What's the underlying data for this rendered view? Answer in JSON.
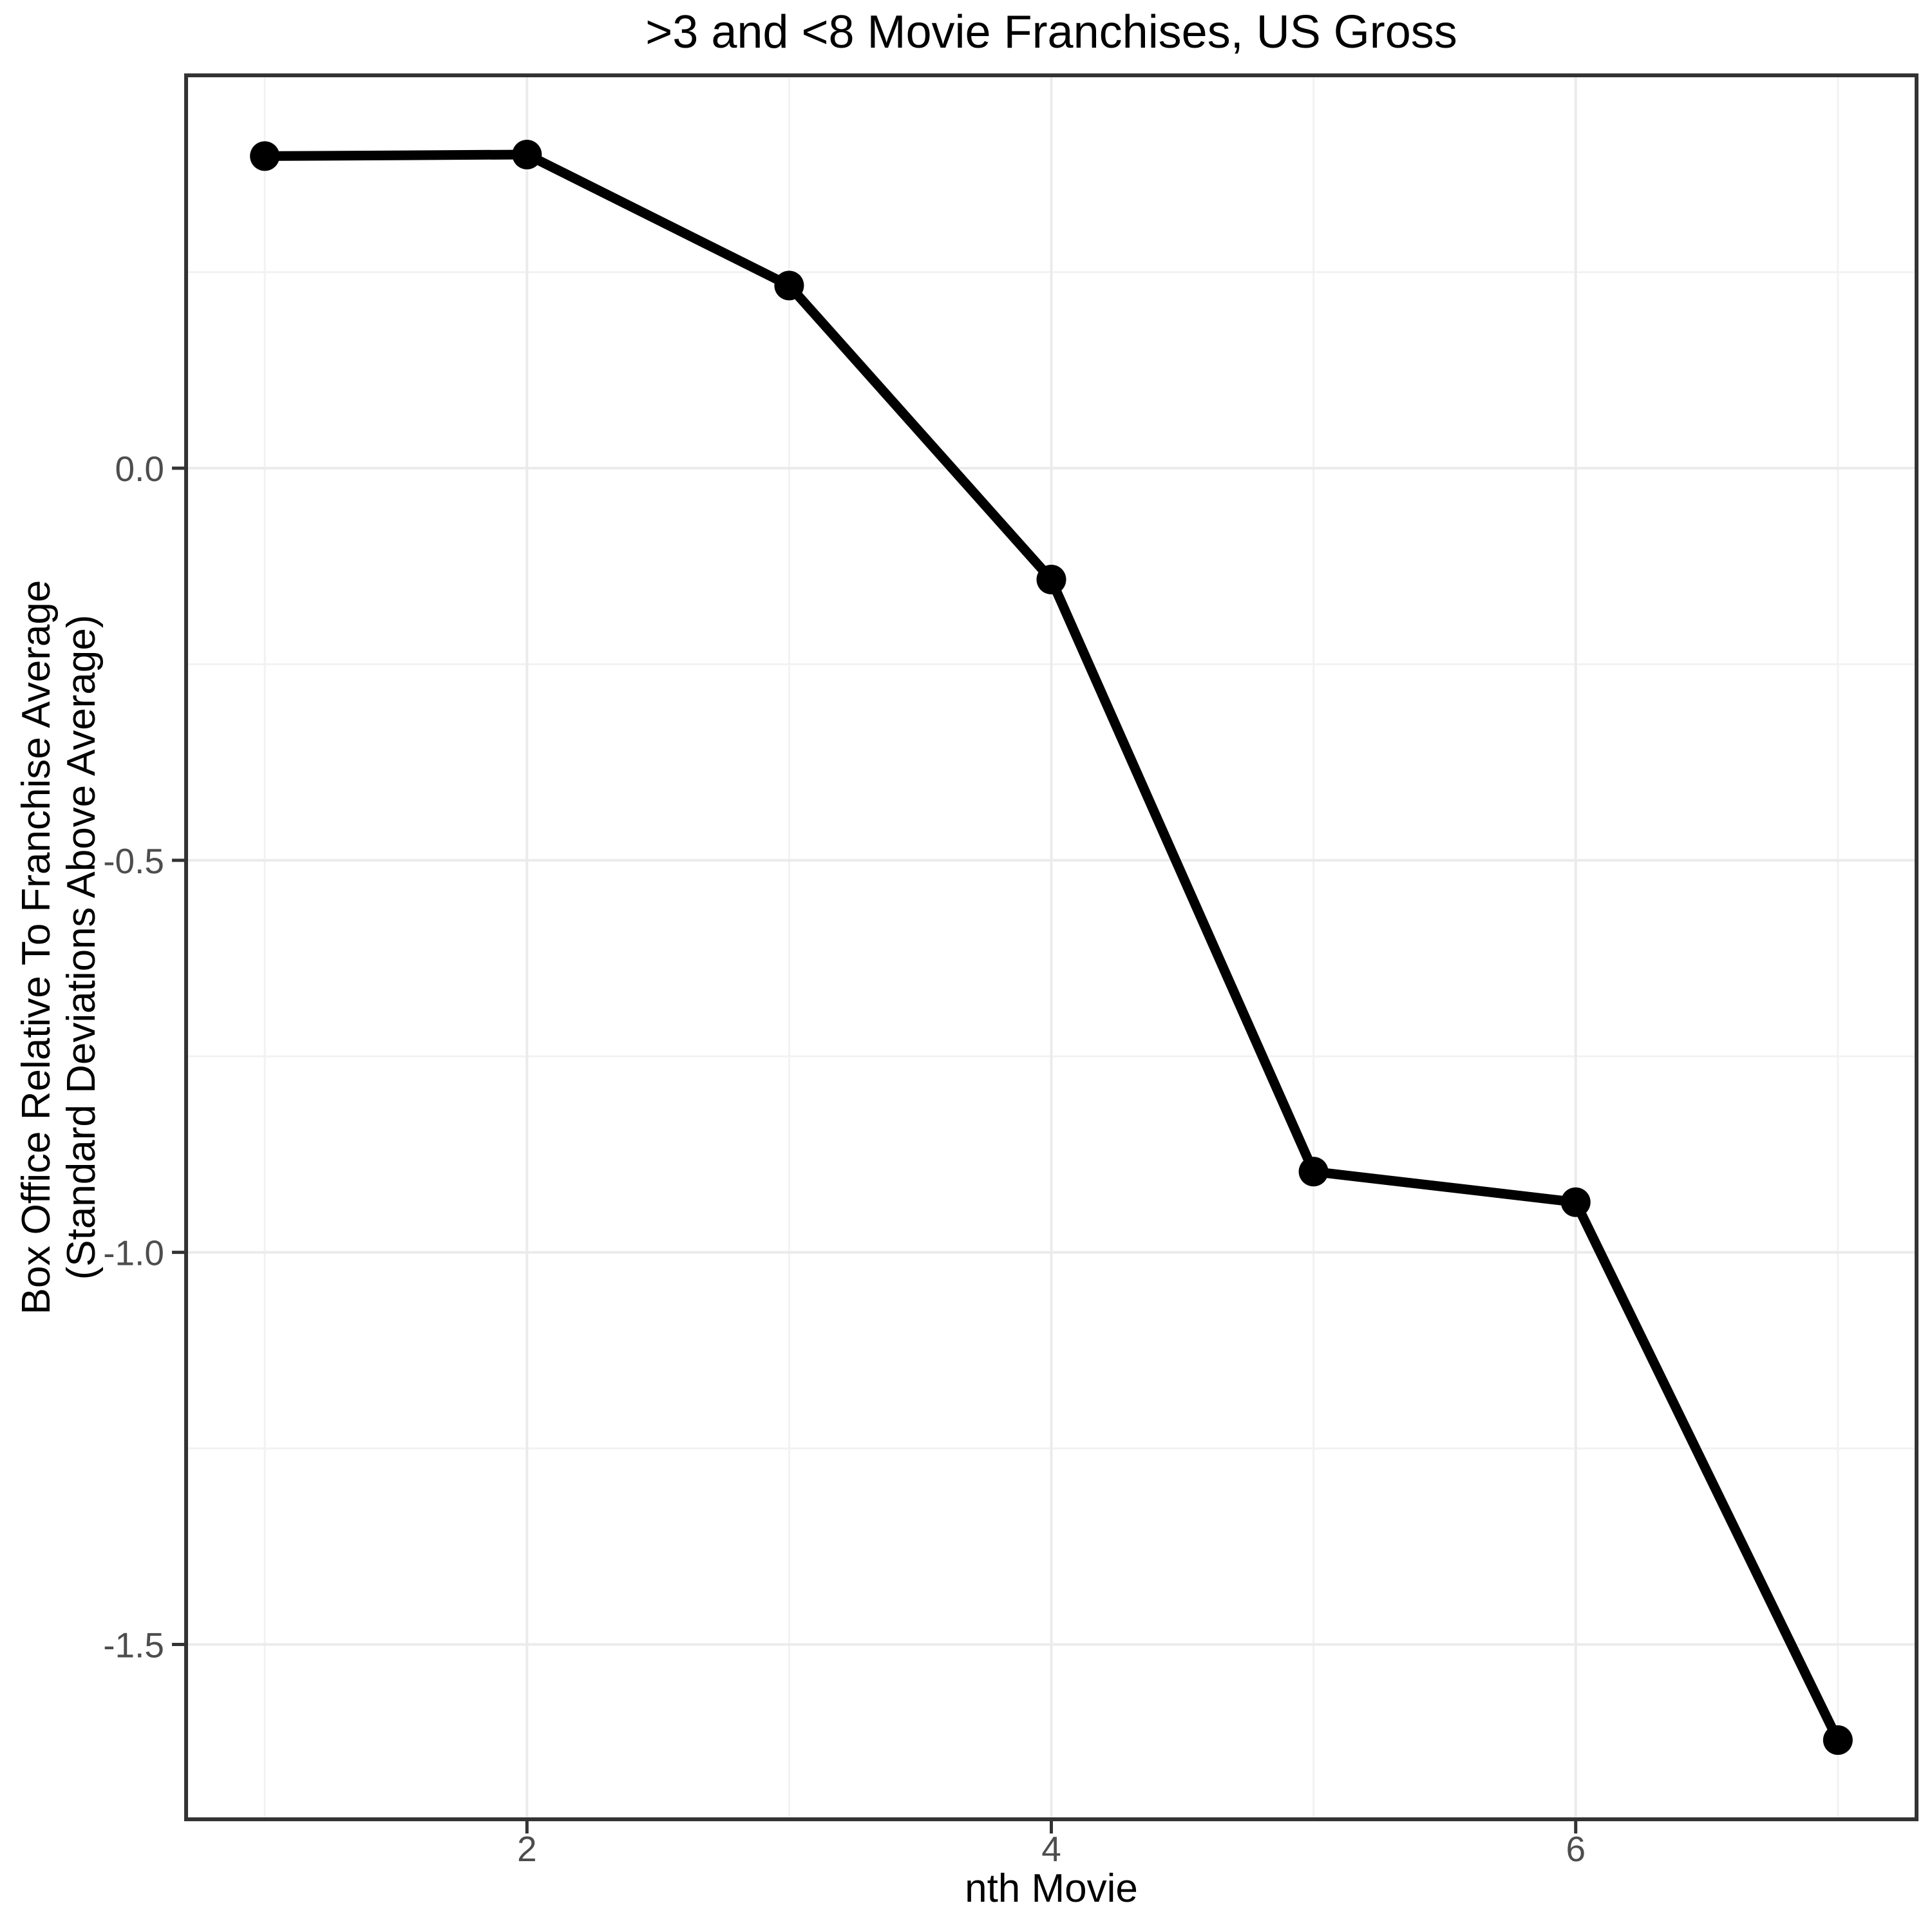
{
  "chart_data": {
    "type": "line",
    "title": ">3 and <8 Movie Franchises, US Gross",
    "xlabel": "nth Movie",
    "ylabel_line1": "Box Office Relative To Franchise Average",
    "ylabel_line2": "(Standard Deviations Above Average)",
    "x": [
      1,
      2,
      3,
      4,
      5,
      6,
      7
    ],
    "values": [
      0.398,
      0.4,
      0.233,
      -0.142,
      -0.897,
      -0.936,
      -1.622
    ],
    "xlim": [
      0.7,
      7.3
    ],
    "ylim": [
      -1.723,
      0.501
    ],
    "x_ticks": [
      {
        "v": 2,
        "label": "2"
      },
      {
        "v": 4,
        "label": "4"
      },
      {
        "v": 6,
        "label": "6"
      }
    ],
    "y_ticks": [
      {
        "v": 0.0,
        "label": "0.0"
      },
      {
        "v": -0.5,
        "label": "-0.5"
      },
      {
        "v": -1.0,
        "label": "-1.0"
      },
      {
        "v": -1.5,
        "label": "-1.5"
      }
    ],
    "x_minor": [
      1,
      3,
      5,
      7
    ],
    "y_minor": [
      0.25,
      -0.25,
      -0.75,
      -1.25
    ],
    "grid": true,
    "legend": "none"
  },
  "colors": {
    "background": "#FFFFFF",
    "title_text": "#000000",
    "axis_title_text": "#000000",
    "tick_label": "#4D4D4D",
    "axis_line": "#333333",
    "grid_major": "#EBEBEB",
    "grid_minor": "#F2F2F2",
    "series": "#000000"
  }
}
